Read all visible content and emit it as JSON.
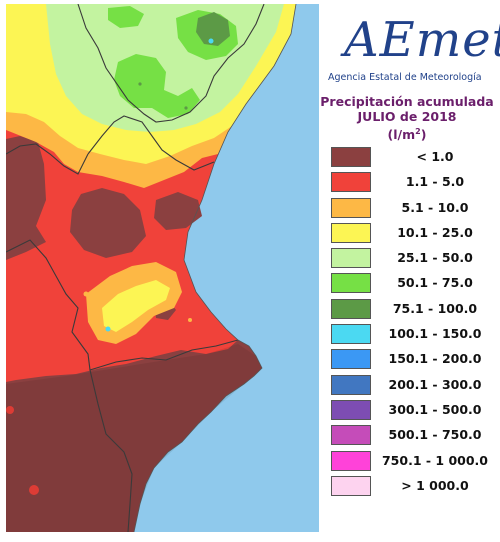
{
  "header": {
    "logo_text": "AEmet",
    "agency": "Agencia Estatal de Meteorología",
    "title": "Precipitación acumulada",
    "period": "JULIO de 2018",
    "unit_prefix": "(l/m",
    "unit_sup": "2",
    "unit_suffix": ")"
  },
  "legend": {
    "items": [
      {
        "label": "< 1.0",
        "color": "#8b4040"
      },
      {
        "label": "1.1 - 5.0",
        "color": "#f0423a"
      },
      {
        "label": "5.1 - 10.0",
        "color": "#fdb845"
      },
      {
        "label": "10.1 - 25.0",
        "color": "#fcf554"
      },
      {
        "label": "25.1 - 50.0",
        "color": "#c3f3a0"
      },
      {
        "label": "50.1 - 75.0",
        "color": "#76e045"
      },
      {
        "label": "75.1 - 100.0",
        "color": "#5c9a46"
      },
      {
        "label": "100.1 - 150.0",
        "color": "#4bd9f2"
      },
      {
        "label": "150.1 - 200.0",
        "color": "#3b98f4"
      },
      {
        "label": "200.1 - 300.0",
        "color": "#4177c1"
      },
      {
        "label": "300.1 - 500.0",
        "color": "#7d4db3"
      },
      {
        "label": "500.1 - 750.0",
        "color": "#c54cb9"
      },
      {
        "label": "750.1 - 1 000.0",
        "color": "#ff42d9"
      },
      {
        "label": "> 1 000.0",
        "color": "#fdd3ef"
      }
    ]
  },
  "colors": {
    "sea": "#8fc9ec",
    "border": "#3a3a3a",
    "title": "#6b1f6b",
    "logo": "#21428a"
  }
}
